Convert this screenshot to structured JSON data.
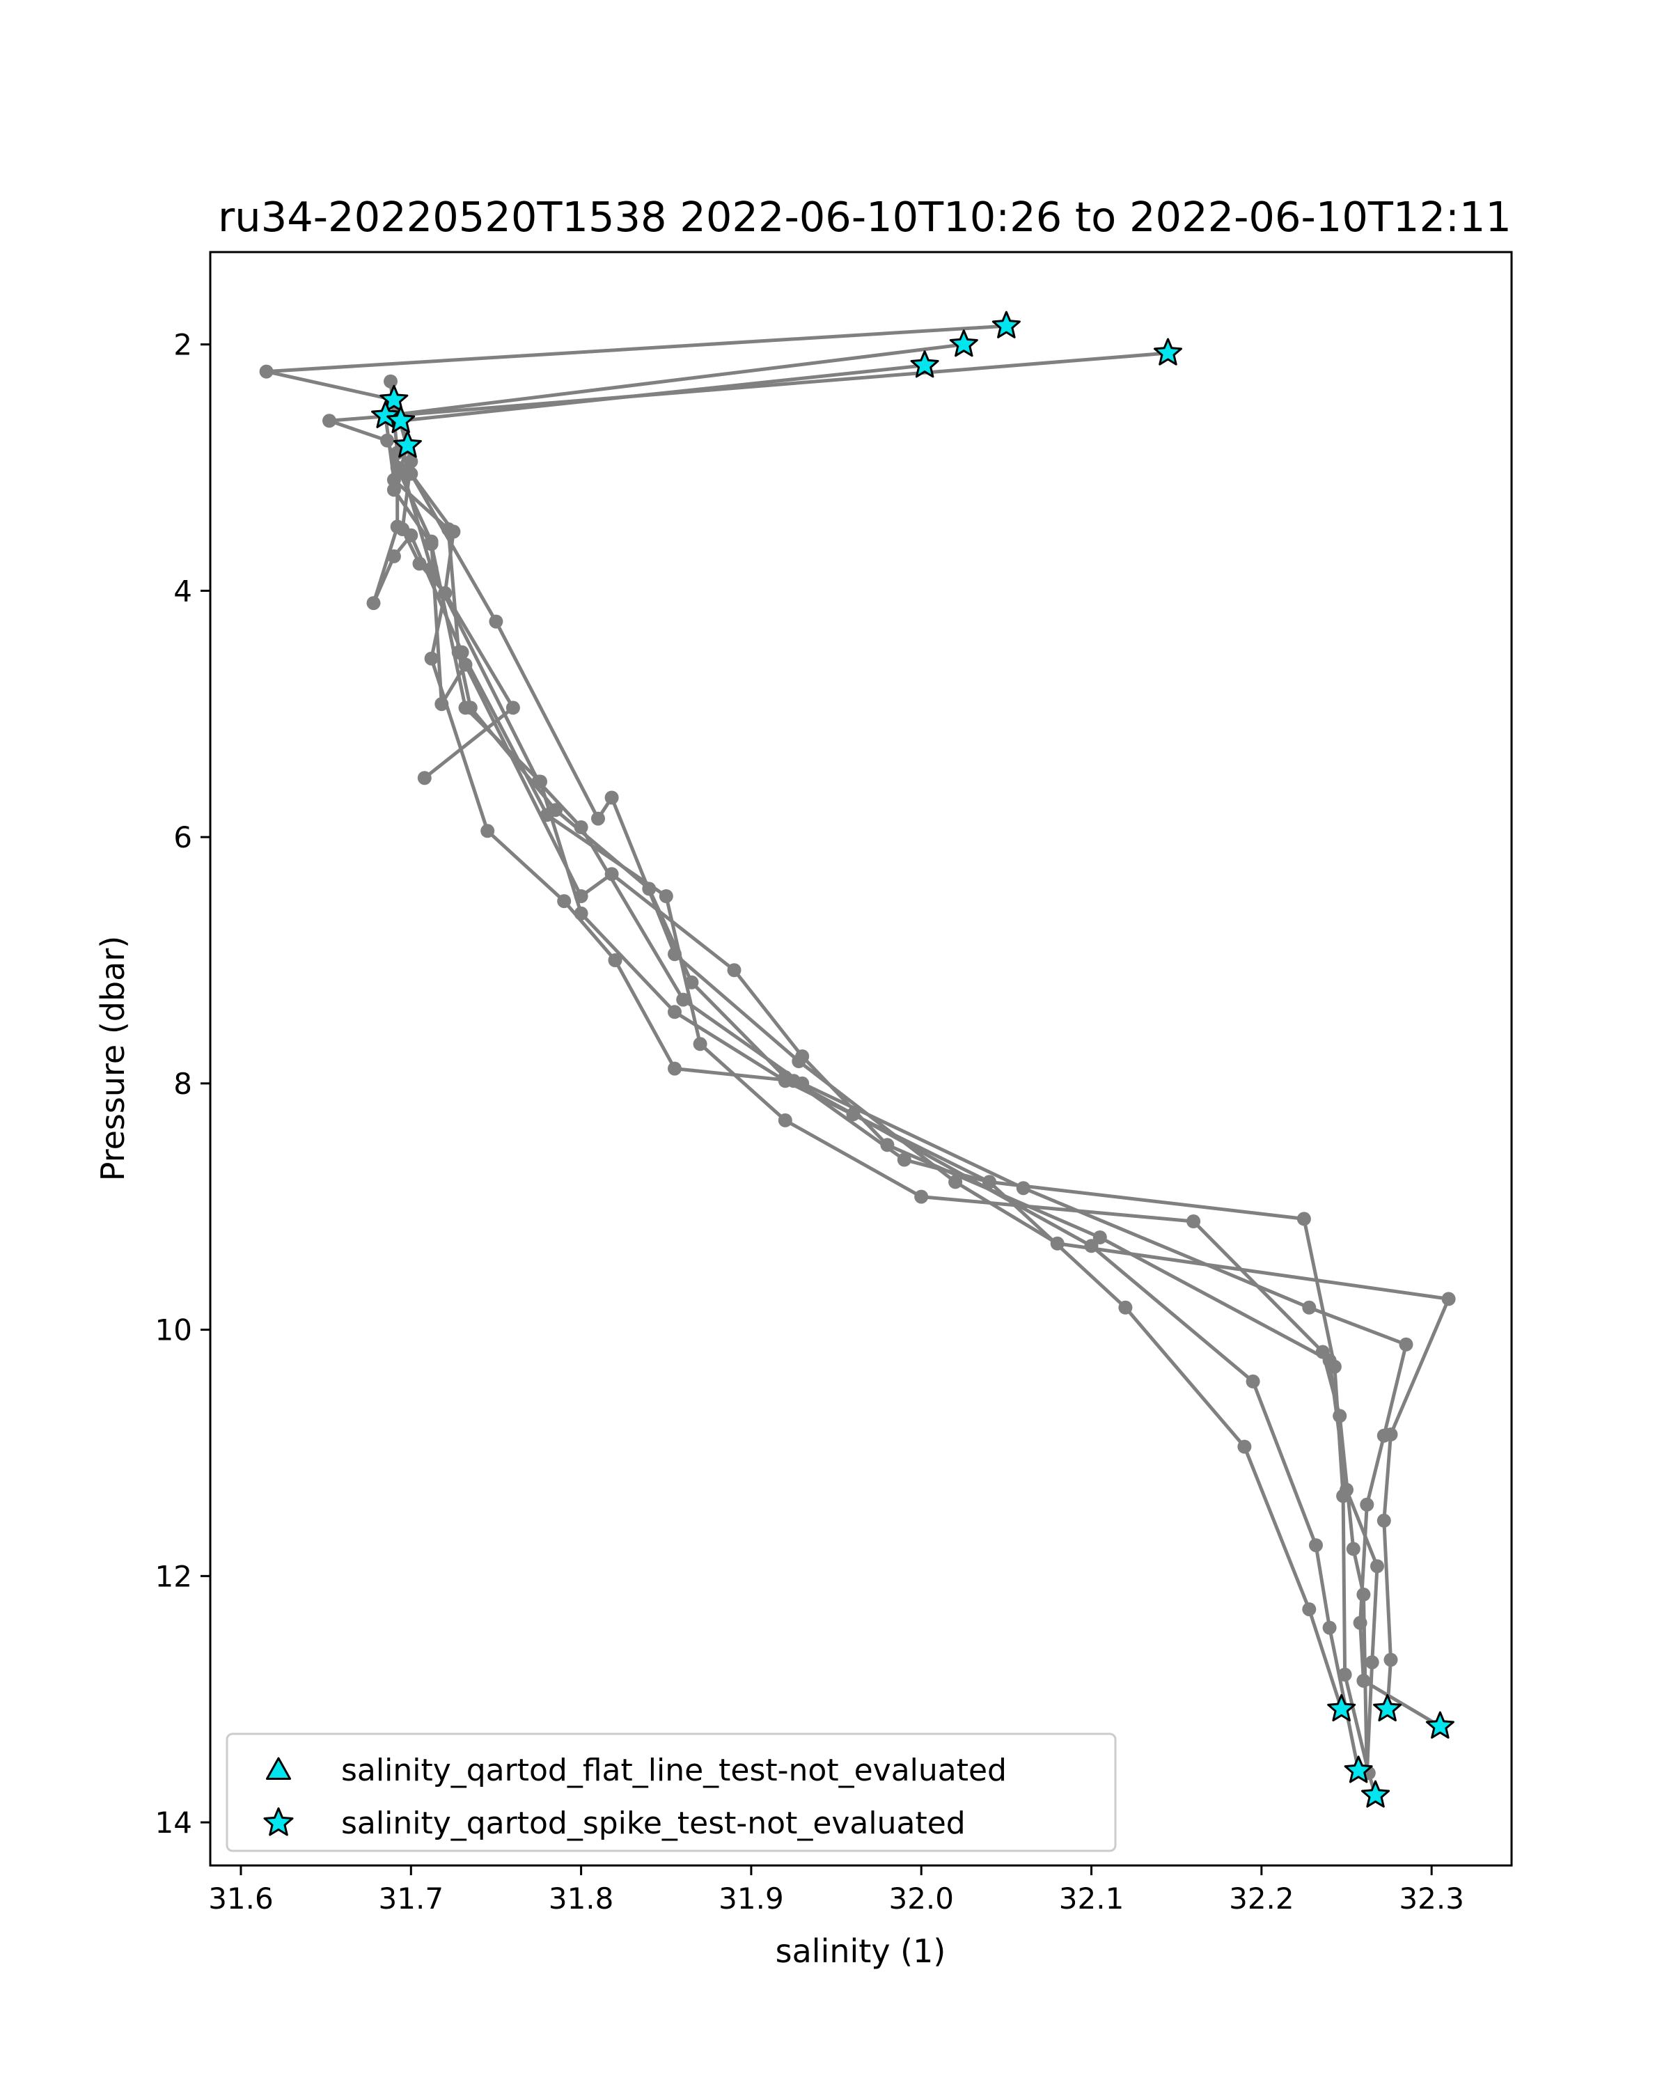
{
  "chart_data": {
    "type": "line",
    "title": "ru34-20220520T1538 2022-06-10T10:26 to 2022-06-10T12:11",
    "xlabel": "salinity (1)",
    "ylabel": "Pressure (dbar)",
    "xlim": [
      31.582,
      32.347
    ],
    "ylim": [
      14.35,
      1.25
    ],
    "y_inverted": true,
    "xticks": [
      31.6,
      31.7,
      31.8,
      31.9,
      32.0,
      32.1,
      32.2,
      32.3
    ],
    "xtick_labels": [
      "31.6",
      "31.7",
      "31.8",
      "31.9",
      "32.0",
      "32.1",
      "32.2",
      "32.3"
    ],
    "yticks": [
      2,
      4,
      6,
      8,
      10,
      12,
      14
    ],
    "ytick_labels": [
      "2",
      "4",
      "6",
      "8",
      "10",
      "12",
      "14"
    ],
    "grid": false,
    "legend_position": "lower-left",
    "colors": {
      "profile_line": "#808080",
      "marker_fill": "#00e5ee",
      "marker_edge": "#000000"
    },
    "legend": [
      {
        "label": "salinity_qartod_flat_line_test-not_evaluated",
        "marker": "triangle"
      },
      {
        "label": "salinity_qartod_spike_test-not_evaluated",
        "marker": "star"
      }
    ],
    "series": [
      {
        "points": [
          [
            32.05,
            1.85
          ],
          [
            31.615,
            2.22
          ],
          [
            31.69,
            2.45
          ],
          [
            31.7,
            2.95
          ],
          [
            31.695,
            3.5
          ],
          [
            31.705,
            3.78
          ],
          [
            31.72,
            4.02
          ],
          [
            31.712,
            4.55
          ],
          [
            31.745,
            5.95
          ],
          [
            31.79,
            6.52
          ],
          [
            31.82,
            7.0
          ],
          [
            31.855,
            7.88
          ],
          [
            31.925,
            7.98
          ],
          [
            31.99,
            8.62
          ],
          [
            32.04,
            8.8
          ],
          [
            32.12,
            9.82
          ],
          [
            32.19,
            10.95
          ],
          [
            32.228,
            12.27
          ],
          [
            32.247,
            13.08
          ]
        ]
      },
      {
        "points": [
          [
            32.025,
            2.0
          ],
          [
            31.685,
            2.58
          ],
          [
            31.69,
            3.1
          ],
          [
            31.722,
            3.5
          ],
          [
            31.728,
            4.5
          ],
          [
            31.735,
            4.95
          ],
          [
            31.785,
            5.78
          ],
          [
            31.84,
            6.42
          ],
          [
            31.865,
            7.18
          ],
          [
            31.92,
            7.95
          ],
          [
            31.96,
            8.25
          ],
          [
            32.1,
            9.32
          ],
          [
            32.195,
            10.42
          ],
          [
            32.232,
            11.75
          ],
          [
            32.24,
            12.42
          ],
          [
            32.257,
            13.58
          ]
        ]
      },
      {
        "points": [
          [
            32.002,
            2.17
          ],
          [
            31.694,
            2.62
          ],
          [
            31.698,
            2.82
          ],
          [
            31.69,
            3.18
          ],
          [
            31.712,
            3.62
          ],
          [
            31.732,
            4.95
          ],
          [
            31.776,
            5.55
          ],
          [
            31.8,
            6.62
          ],
          [
            31.855,
            7.42
          ],
          [
            31.92,
            7.98
          ],
          [
            32.04,
            8.8
          ],
          [
            32.225,
            9.1
          ],
          [
            32.243,
            10.3
          ],
          [
            32.248,
            11.35
          ],
          [
            32.249,
            12.8
          ],
          [
            32.263,
            13.6
          ],
          [
            32.267,
            13.78
          ]
        ]
      },
      {
        "points": [
          [
            32.145,
            2.07
          ],
          [
            31.652,
            2.62
          ],
          [
            31.686,
            2.78
          ],
          [
            31.692,
            3.0
          ],
          [
            31.712,
            3.6
          ],
          [
            31.718,
            4.92
          ],
          [
            31.732,
            4.6
          ],
          [
            31.8,
            6.48
          ],
          [
            31.818,
            6.3
          ],
          [
            31.89,
            7.08
          ],
          [
            31.93,
            7.78
          ],
          [
            31.98,
            8.5
          ],
          [
            32.105,
            9.25
          ],
          [
            32.24,
            10.25
          ],
          [
            32.25,
            11.3
          ],
          [
            32.268,
            11.92
          ],
          [
            32.265,
            12.7
          ],
          [
            32.262,
            13.6
          ]
        ]
      },
      {
        "points": [
          [
            31.688,
            2.3
          ],
          [
            31.692,
            2.88
          ],
          [
            31.692,
            3.48
          ],
          [
            31.678,
            4.1
          ],
          [
            31.69,
            3.72
          ],
          [
            31.7,
            3.55
          ],
          [
            31.73,
            4.5
          ],
          [
            31.78,
            5.82
          ],
          [
            31.85,
            6.48
          ],
          [
            31.87,
            7.68
          ],
          [
            31.92,
            8.3
          ],
          [
            32.0,
            8.92
          ],
          [
            32.16,
            9.12
          ],
          [
            32.236,
            10.18
          ],
          [
            32.246,
            10.7
          ],
          [
            32.254,
            11.78
          ],
          [
            32.26,
            12.15
          ],
          [
            32.262,
            13.6
          ]
        ]
      },
      {
        "points": [
          [
            31.708,
            5.52
          ],
          [
            31.76,
            4.95
          ],
          [
            31.72,
            4.02
          ],
          [
            31.725,
            3.52
          ],
          [
            31.7,
            3.05
          ],
          [
            31.75,
            4.25
          ],
          [
            31.81,
            5.85
          ],
          [
            31.818,
            5.68
          ],
          [
            31.855,
            6.95
          ],
          [
            31.928,
            7.82
          ],
          [
            32.02,
            8.8
          ],
          [
            32.08,
            9.3
          ],
          [
            32.31,
            9.75
          ],
          [
            32.276,
            10.85
          ],
          [
            32.272,
            11.55
          ],
          [
            32.276,
            12.68
          ],
          [
            32.274,
            13.08
          ]
        ]
      },
      {
        "points": [
          [
            31.695,
            3.02
          ],
          [
            31.712,
            3.82
          ],
          [
            31.775,
            5.55
          ],
          [
            31.8,
            5.92
          ],
          [
            31.86,
            7.32
          ],
          [
            31.93,
            8.0
          ],
          [
            32.06,
            8.85
          ],
          [
            32.228,
            9.82
          ],
          [
            32.285,
            10.12
          ],
          [
            32.272,
            10.86
          ],
          [
            32.262,
            11.42
          ],
          [
            32.258,
            12.38
          ],
          [
            32.26,
            12.85
          ],
          [
            32.305,
            13.22
          ]
        ]
      }
    ],
    "spike_test_not_evaluated": [
      [
        32.05,
        1.85
      ],
      [
        32.025,
        2.0
      ],
      [
        32.002,
        2.17
      ],
      [
        32.145,
        2.07
      ],
      [
        31.69,
        2.45
      ],
      [
        31.685,
        2.58
      ],
      [
        31.694,
        2.62
      ],
      [
        31.698,
        2.82
      ],
      [
        32.247,
        13.08
      ],
      [
        32.274,
        13.08
      ],
      [
        32.305,
        13.22
      ],
      [
        32.257,
        13.58
      ],
      [
        32.267,
        13.78
      ]
    ],
    "flat_line_test_not_evaluated": []
  }
}
